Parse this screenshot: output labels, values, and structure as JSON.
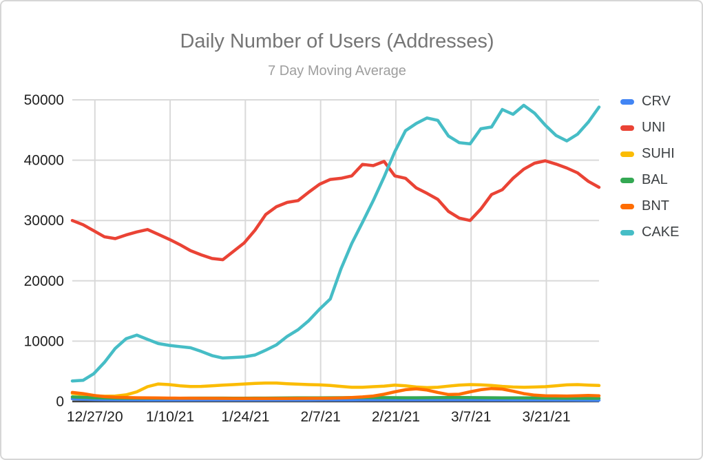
{
  "header": {
    "title": "Daily Number of Users (Addresses)",
    "subtitle": "7 Day Moving Average",
    "title_color": "#757575",
    "subtitle_color": "#9e9e9e"
  },
  "chart_data": {
    "type": "line",
    "title": "Daily Number of Users (Addresses)",
    "subtitle": "7 Day Moving Average",
    "xlabel": "",
    "ylabel": "",
    "ylim": [
      0,
      50000
    ],
    "y_ticks": [
      0,
      10000,
      20000,
      30000,
      40000,
      50000
    ],
    "x_tick_labels": [
      "12/27/20",
      "1/10/21",
      "1/24/21",
      "2/7/21",
      "2/21/21",
      "3/7/21",
      "3/21/21"
    ],
    "x_tick_days": [
      4.2,
      18.2,
      32.2,
      46.2,
      60.2,
      74.2,
      88.2
    ],
    "x_range": [
      0,
      98
    ],
    "grid": true,
    "legend_position": "right",
    "gridline_color": "#d9d9d9",
    "baseline_color": "#424242",
    "axis_label_color": "#212121",
    "sample_days": [
      0,
      2,
      4,
      6,
      8,
      10,
      12,
      14,
      16,
      18,
      20,
      22,
      24,
      26,
      28,
      30,
      32,
      34,
      36,
      38,
      40,
      42,
      44,
      46,
      48,
      50,
      52,
      54,
      56,
      58,
      60,
      62,
      64,
      66,
      68,
      70,
      72,
      74,
      76,
      78,
      80,
      82,
      84,
      86,
      88,
      90,
      92,
      94,
      96,
      98
    ],
    "series": [
      {
        "name": "CRV",
        "color": "#4285F4",
        "values": [
          450,
          380,
          330,
          300,
          285,
          275,
          270,
          265,
          260,
          260,
          255,
          255,
          250,
          250,
          250,
          250,
          250,
          255,
          255,
          260,
          260,
          265,
          265,
          270,
          270,
          275,
          275,
          280,
          280,
          280,
          280,
          280,
          280,
          280,
          280,
          285,
          285,
          285,
          280,
          275,
          270,
          265,
          260,
          255,
          250,
          245,
          235,
          225,
          215,
          200
        ]
      },
      {
        "name": "UNI",
        "color": "#EA4335",
        "values": [
          30000,
          29300,
          28300,
          27300,
          27000,
          27600,
          28100,
          28500,
          27700,
          26900,
          26000,
          25000,
          24300,
          23700,
          23500,
          24900,
          26300,
          28400,
          31000,
          32300,
          33000,
          33300,
          34700,
          36000,
          36800,
          37000,
          37400,
          39300,
          39100,
          39800,
          37400,
          37000,
          35400,
          34500,
          33500,
          31500,
          30400,
          30000,
          31900,
          34300,
          35100,
          37000,
          38500,
          39500,
          39900,
          39350,
          38700,
          37900,
          36500,
          35500
        ]
      },
      {
        "name": "SUHI",
        "color": "#FBBC04",
        "values": [
          1350,
          1150,
          950,
          870,
          900,
          1100,
          1600,
          2450,
          2900,
          2800,
          2600,
          2480,
          2500,
          2600,
          2700,
          2800,
          2900,
          3000,
          3050,
          3050,
          2950,
          2870,
          2800,
          2750,
          2650,
          2500,
          2350,
          2350,
          2450,
          2550,
          2700,
          2600,
          2400,
          2300,
          2350,
          2550,
          2700,
          2800,
          2750,
          2650,
          2500,
          2400,
          2350,
          2400,
          2450,
          2600,
          2750,
          2800,
          2700,
          2650
        ]
      },
      {
        "name": "BAL",
        "color": "#34A853",
        "values": [
          750,
          680,
          620,
          580,
          560,
          550,
          545,
          540,
          540,
          545,
          550,
          555,
          560,
          560,
          555,
          550,
          550,
          555,
          560,
          570,
          580,
          590,
          600,
          610,
          620,
          630,
          640,
          650,
          650,
          640,
          630,
          620,
          620,
          630,
          640,
          650,
          650,
          640,
          630,
          620,
          610,
          600,
          590,
          580,
          570,
          560,
          550,
          540,
          530,
          520
        ]
      },
      {
        "name": "BNT",
        "color": "#FF6D01",
        "values": [
          1500,
          1300,
          1000,
          800,
          700,
          650,
          620,
          600,
          580,
          560,
          550,
          540,
          530,
          520,
          510,
          500,
          500,
          500,
          500,
          500,
          500,
          510,
          520,
          530,
          550,
          580,
          650,
          750,
          900,
          1200,
          1600,
          1950,
          2100,
          1900,
          1500,
          1150,
          1200,
          1600,
          1950,
          2150,
          2050,
          1700,
          1300,
          1050,
          950,
          920,
          900,
          950,
          1000,
          950
        ]
      },
      {
        "name": "CAKE",
        "color": "#46BDC6",
        "values": [
          3400,
          3500,
          4600,
          6500,
          8800,
          10400,
          11000,
          10300,
          9600,
          9300,
          9100,
          8900,
          8300,
          7600,
          7200,
          7300,
          7400,
          7700,
          8500,
          9400,
          10800,
          11900,
          13400,
          15300,
          17000,
          22000,
          26200,
          29700,
          33300,
          37200,
          41400,
          44900,
          46100,
          47000,
          46600,
          44000,
          42900,
          42700,
          45200,
          45500,
          48400,
          47600,
          49100,
          47800,
          45800,
          44100,
          43200,
          44300,
          46300,
          48800
        ]
      }
    ]
  }
}
